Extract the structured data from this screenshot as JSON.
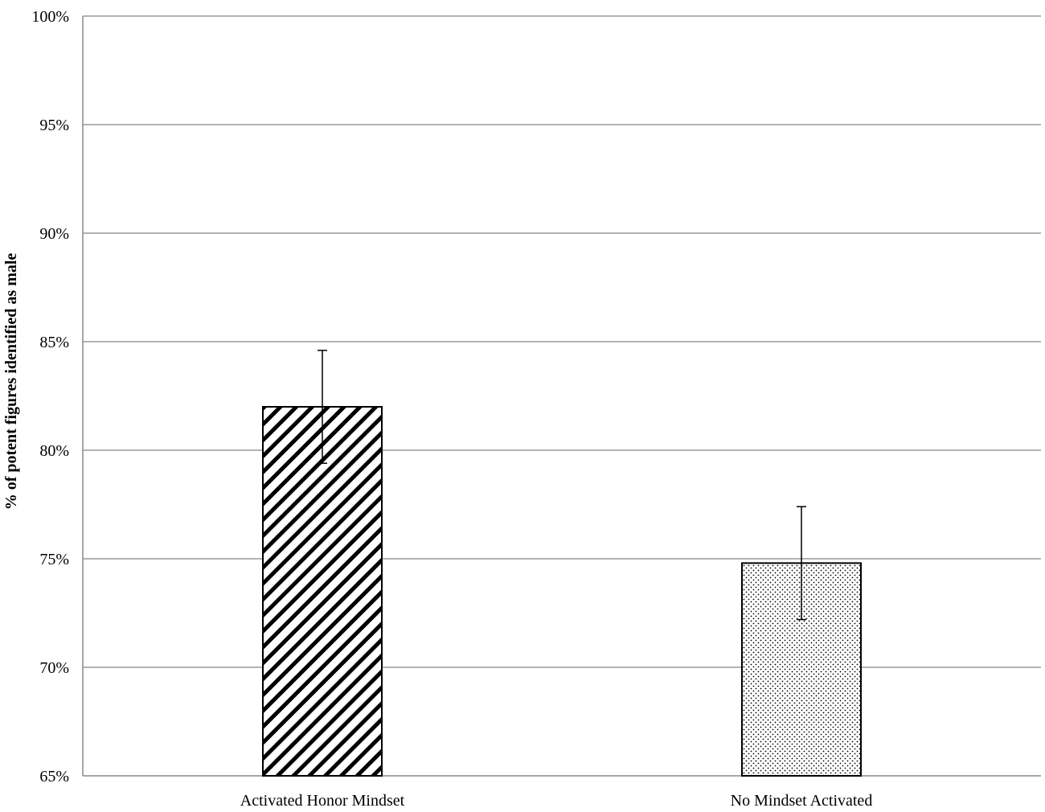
{
  "chart_data": {
    "type": "bar",
    "title": "",
    "xlabel": "",
    "ylabel": "% of potent figures identified as male",
    "ylim": [
      65,
      100
    ],
    "yticks": [
      65,
      70,
      75,
      80,
      85,
      90,
      95,
      100
    ],
    "ytick_labels": [
      "65%",
      "70%",
      "75%",
      "80%",
      "85%",
      "90%",
      "95%",
      "100%"
    ],
    "categories": [
      "Activated Honor Mindset",
      "No Mindset Activated"
    ],
    "values": [
      82.0,
      74.8
    ],
    "errors": [
      2.6,
      2.6
    ],
    "patterns": [
      "diagonal-stripes",
      "dots"
    ],
    "grid": true,
    "legend": "none"
  }
}
